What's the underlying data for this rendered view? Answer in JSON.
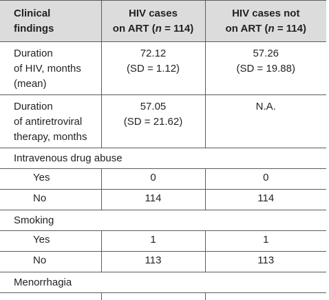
{
  "header": {
    "col1": [
      "Clinical",
      "findings"
    ],
    "col2": [
      "HIV cases",
      "on ART (",
      "n",
      " = 114)"
    ],
    "col3": [
      "HIV cases not",
      "on ART  (",
      "n",
      " = 114)"
    ]
  },
  "rows": {
    "duration_hiv": {
      "label": [
        "Duration",
        "of HIV, months",
        "(mean)"
      ],
      "on_art": [
        "72.12",
        "(SD = 1.12)"
      ],
      "not_on_art": [
        "57.26",
        "(SD = 19.88)"
      ]
    },
    "duration_art": {
      "label": [
        "Duration",
        "of antiretroviral",
        "therapy, months"
      ],
      "on_art": [
        "57.05",
        "(SD = 21.62)"
      ],
      "not_on_art": [
        "N.A."
      ]
    }
  },
  "sections": {
    "ivda": {
      "title": "Intravenous drug abuse",
      "yes": {
        "label": "Yes",
        "on_art": "0",
        "not_on_art": "0"
      },
      "no": {
        "label": "No",
        "on_art": "114",
        "not_on_art": "114"
      }
    },
    "smoking": {
      "title": "Smoking",
      "yes": {
        "label": "Yes",
        "on_art": "1",
        "not_on_art": "1"
      },
      "no": {
        "label": "No",
        "on_art": "113",
        "not_on_art": "113"
      }
    },
    "menorrhagia": {
      "title": "Menorrhagia"
    }
  }
}
